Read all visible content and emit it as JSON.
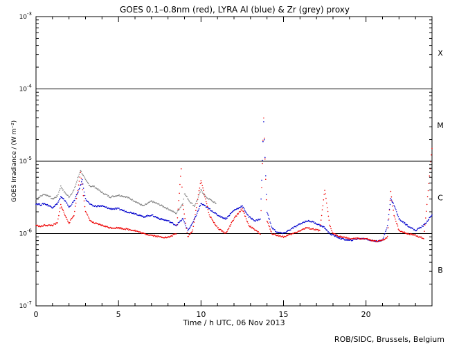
{
  "credit": "ROB/SIDC, Brussels, Belgium",
  "chart_data": {
    "type": "scatter",
    "title": "GOES 0.1–0.8nm (red), LYRA Al (blue) & Zr (grey) proxy",
    "xlabel": "Time / h UTC, 06 Nov 2013",
    "ylabel": "GOES Irradiance / (W m⁻²)",
    "xlim": [
      0,
      24
    ],
    "ylim": [
      1e-07,
      0.001
    ],
    "yscale": "log",
    "xticks": [
      0,
      5,
      10,
      15,
      20
    ],
    "yticks": [
      {
        "value": 1e-07,
        "base": "10",
        "exp": "-7"
      },
      {
        "value": 1e-06,
        "base": "10",
        "exp": "-6"
      },
      {
        "value": 1e-05,
        "base": "10",
        "exp": "-5"
      },
      {
        "value": 0.0001,
        "base": "10",
        "exp": "-4"
      },
      {
        "value": 0.001,
        "base": "10",
        "exp": "-3"
      }
    ],
    "reference_lines": [
      1e-06,
      1e-05,
      0.0001
    ],
    "flare_classes": [
      {
        "label": "X",
        "value": 0.000316
      },
      {
        "label": "M",
        "value": 3.16e-05
      },
      {
        "label": "C",
        "value": 3.16e-06
      },
      {
        "label": "B",
        "value": 3.16e-07
      }
    ],
    "series": [
      {
        "name": "Zr (grey) proxy",
        "color": "#888888",
        "x": [
          0.0,
          0.3,
          0.5,
          0.8,
          1.0,
          1.3,
          1.5,
          1.7,
          2.0,
          2.3,
          2.5,
          2.7,
          3.0,
          3.3,
          3.5,
          4.0,
          4.5,
          5.0,
          5.5,
          6.0,
          6.5,
          7.0,
          7.5,
          8.0,
          8.5,
          8.9,
          9.0,
          9.3,
          9.6,
          9.8,
          10.0,
          10.3,
          10.6,
          10.9
        ],
        "y": [
          3e-06,
          3.3e-06,
          3.5e-06,
          3.3e-06,
          3e-06,
          3.3e-06,
          4.5e-06,
          3.8e-06,
          3.2e-06,
          4e-06,
          5.5e-06,
          7.5e-06,
          5.5e-06,
          4.5e-06,
          4.5e-06,
          3.7e-06,
          3.2e-06,
          3.4e-06,
          3.2e-06,
          2.8e-06,
          2.4e-06,
          2.8e-06,
          2.5e-06,
          2.2e-06,
          1.9e-06,
          2.6e-06,
          3.6e-06,
          2.8e-06,
          2.4e-06,
          3e-06,
          4e-06,
          3.2e-06,
          2.9e-06,
          2.6e-06
        ]
      },
      {
        "name": "LYRA Al (blue)",
        "color": "#0000cc",
        "x": [
          0.0,
          0.3,
          0.5,
          1.0,
          1.3,
          1.5,
          1.8,
          2.0,
          2.3,
          2.6,
          2.8,
          3.0,
          3.3,
          3.5,
          4.0,
          4.5,
          5.0,
          5.5,
          6.0,
          6.5,
          7.0,
          7.5,
          8.0,
          8.5,
          8.9,
          9.2,
          9.5,
          9.8,
          10.0,
          10.5,
          11.0,
          11.5,
          12.0,
          12.5,
          12.9,
          13.3,
          13.6,
          13.8,
          14.0,
          14.3,
          14.6,
          15.0,
          15.3,
          15.6,
          16.0,
          16.4,
          16.8,
          17.2,
          17.5,
          17.8,
          18.0,
          18.5,
          19.0,
          19.5,
          20.0,
          20.3,
          20.6,
          21.0,
          21.3,
          21.5,
          21.7,
          22.0,
          22.5,
          23.0,
          23.5,
          24.0
        ],
        "y": [
          2.6e-06,
          2.5e-06,
          2.6e-06,
          2.3e-06,
          2.6e-06,
          3.2e-06,
          2.8e-06,
          2.3e-06,
          2.8e-06,
          4e-06,
          5.5e-06,
          3e-06,
          2.5e-06,
          2.4e-06,
          2.4e-06,
          2.2e-06,
          2.2e-06,
          2e-06,
          1.9e-06,
          1.7e-06,
          1.8e-06,
          1.6e-06,
          1.5e-06,
          1.3e-06,
          1.6e-06,
          1.1e-06,
          1.4e-06,
          2e-06,
          2.6e-06,
          2.2e-06,
          1.8e-06,
          1.6e-06,
          2.1e-06,
          2.4e-06,
          1.7e-06,
          1.5e-06,
          1.6e-06,
          3.5e-05,
          2e-06,
          1.2e-06,
          1.05e-06,
          1e-06,
          1.1e-06,
          1.2e-06,
          1.35e-06,
          1.5e-06,
          1.45e-06,
          1.3e-06,
          1.2e-06,
          1e-06,
          9.5e-07,
          8.5e-07,
          8e-07,
          8.5e-07,
          8.5e-07,
          8e-07,
          7.8e-07,
          8e-07,
          1.3e-06,
          3e-06,
          2.5e-06,
          1.6e-06,
          1.3e-06,
          1.1e-06,
          1.3e-06,
          1.8e-06
        ]
      },
      {
        "name": "GOES 0.1–0.8nm (red)",
        "color": "#ee0000",
        "x": [
          0.0,
          0.3,
          0.5,
          1.0,
          1.3,
          1.5,
          1.8,
          2.0,
          2.3,
          2.5,
          2.7,
          3.0,
          3.3,
          3.5,
          4.0,
          4.5,
          5.0,
          5.5,
          6.0,
          6.5,
          7.0,
          7.5,
          8.0,
          8.5,
          8.8,
          8.9,
          9.2,
          9.5,
          9.8,
          10.0,
          10.5,
          11.0,
          11.5,
          12.0,
          12.5,
          12.9,
          13.3,
          13.6,
          13.8,
          14.0,
          14.3,
          14.6,
          15.0,
          15.3,
          15.6,
          16.0,
          16.4,
          16.8,
          17.2,
          17.5,
          17.8,
          18.0,
          18.5,
          19.0,
          19.5,
          20.0,
          20.3,
          20.6,
          21.0,
          21.3,
          21.5,
          21.7,
          22.0,
          22.5,
          23.0,
          23.5,
          24.0
        ],
        "y": [
          1.3e-06,
          1.25e-06,
          1.3e-06,
          1.3e-06,
          1.4e-06,
          2.5e-06,
          1.7e-06,
          1.4e-06,
          1.8e-06,
          3.5e-06,
          7e-06,
          2e-06,
          1.5e-06,
          1.4e-06,
          1.3e-06,
          1.2e-06,
          1.2e-06,
          1.15e-06,
          1.1e-06,
          1e-06,
          9.5e-07,
          9e-07,
          8.8e-07,
          1e-06,
          8e-06,
          2.5e-06,
          9e-07,
          1.1e-06,
          3e-06,
          5.5e-06,
          1.8e-06,
          1.2e-06,
          1e-06,
          1.6e-06,
          2.2e-06,
          1.3e-06,
          1.1e-06,
          1e-06,
          4e-05,
          1.5e-06,
          1e-06,
          9.5e-07,
          9e-07,
          9.5e-07,
          1e-06,
          1.1e-06,
          1.2e-06,
          1.15e-06,
          1.1e-06,
          4e-06,
          1.3e-06,
          1e-06,
          9e-07,
          8.5e-07,
          8.5e-07,
          8.5e-07,
          8e-07,
          7.8e-07,
          8e-07,
          9e-07,
          3.8e-06,
          1.8e-06,
          1.1e-06,
          1e-06,
          9.5e-07,
          8.5e-07,
          1.5e-05
        ]
      }
    ]
  }
}
